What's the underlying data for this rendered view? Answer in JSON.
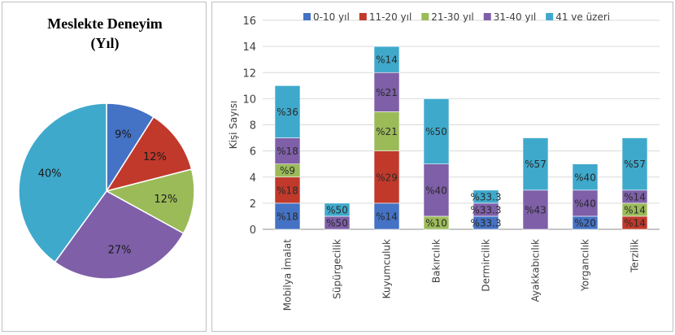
{
  "chart_data": [
    {
      "type": "pie",
      "title": "Meslekte Deneyim",
      "subtitle": "(Yıl)",
      "slices": [
        {
          "label": "9%",
          "value": 9,
          "color": "#4472c4"
        },
        {
          "label": "12%",
          "value": 12,
          "color": "#c0392b"
        },
        {
          "label": "12%",
          "value": 12,
          "color": "#9bbb59"
        },
        {
          "label": "27%",
          "value": 27,
          "color": "#7e5fa8"
        },
        {
          "label": "40%",
          "value": 40,
          "color": "#3fa9cc"
        }
      ]
    },
    {
      "type": "bar",
      "stacked": true,
      "ylabel": "Kişi Sayısı",
      "ylim": [
        0,
        16
      ],
      "yticks": [
        "0",
        "2",
        "4",
        "6",
        "8",
        "10",
        "12",
        "14",
        "16"
      ],
      "legend_position": "top",
      "categories": [
        "Mobilya İmalat",
        "Süpürgecilik",
        "Kuyumculuk",
        "Bakırcılık",
        "Dermircilik",
        "Ayakkabıcılık",
        "Yorgancılık",
        "Terzilik"
      ],
      "series": [
        {
          "name": "0-10 yıl",
          "color": "#4472c4",
          "values": [
            2,
            0,
            2,
            0,
            1,
            0,
            1,
            0
          ],
          "labels": [
            "%18",
            "",
            "%14",
            "",
            "%33.3",
            "",
            "%20",
            ""
          ]
        },
        {
          "name": "11-20 yıl",
          "color": "#c0392b",
          "values": [
            2,
            0,
            4,
            0,
            0,
            0,
            0,
            1
          ],
          "labels": [
            "%18",
            "",
            "%29",
            "",
            "",
            "",
            "",
            "%14"
          ]
        },
        {
          "name": "21-30 yıl",
          "color": "#9bbb59",
          "values": [
            1,
            0,
            3,
            1,
            0,
            0,
            0,
            1
          ],
          "labels": [
            "%9",
            "",
            "%21",
            "%10",
            "",
            "",
            "",
            "%14"
          ]
        },
        {
          "name": "31-40 yıl",
          "color": "#7e5fa8",
          "values": [
            2,
            1,
            3,
            4,
            1,
            3,
            2,
            1
          ],
          "labels": [
            "%18",
            "%50",
            "%21",
            "%40",
            "%33.3",
            "%43",
            "%40",
            "%14"
          ]
        },
        {
          "name": "41 ve üzeri",
          "color": "#3fa9cc",
          "values": [
            4,
            1,
            2,
            5,
            1,
            4,
            2,
            4
          ],
          "labels": [
            "%36",
            "%50",
            "%14",
            "%50",
            "%33.3",
            "%57",
            "%40",
            "%57"
          ]
        }
      ]
    }
  ]
}
